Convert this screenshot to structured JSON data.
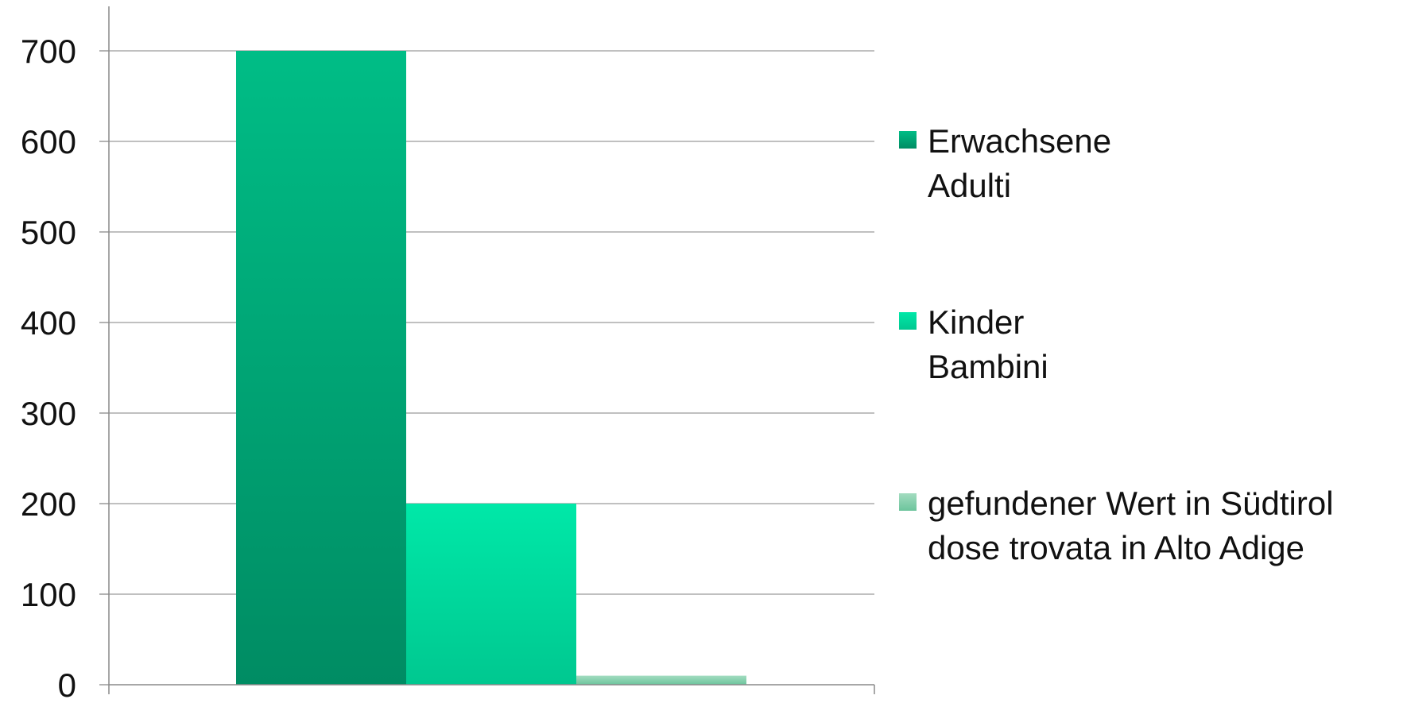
{
  "chart_data": {
    "type": "bar",
    "title": "",
    "xlabel": "",
    "ylabel": "",
    "ylim": [
      0,
      700
    ],
    "yticks": [
      0,
      100,
      200,
      300,
      400,
      500,
      600,
      700
    ],
    "grid": true,
    "legend_position": "right",
    "categories": [
      ""
    ],
    "series": [
      {
        "name": "Erwachsene\nAdulti",
        "values": [
          700
        ],
        "color": "#00a172"
      },
      {
        "name": "Kinder\nBambini",
        "values": [
          200
        ],
        "color": "#00d9a0"
      },
      {
        "name": "gefundener Wert in Südtirol\ndose trovata in Alto Adige",
        "values": [
          10
        ],
        "color": "#7fcfa8"
      }
    ]
  }
}
